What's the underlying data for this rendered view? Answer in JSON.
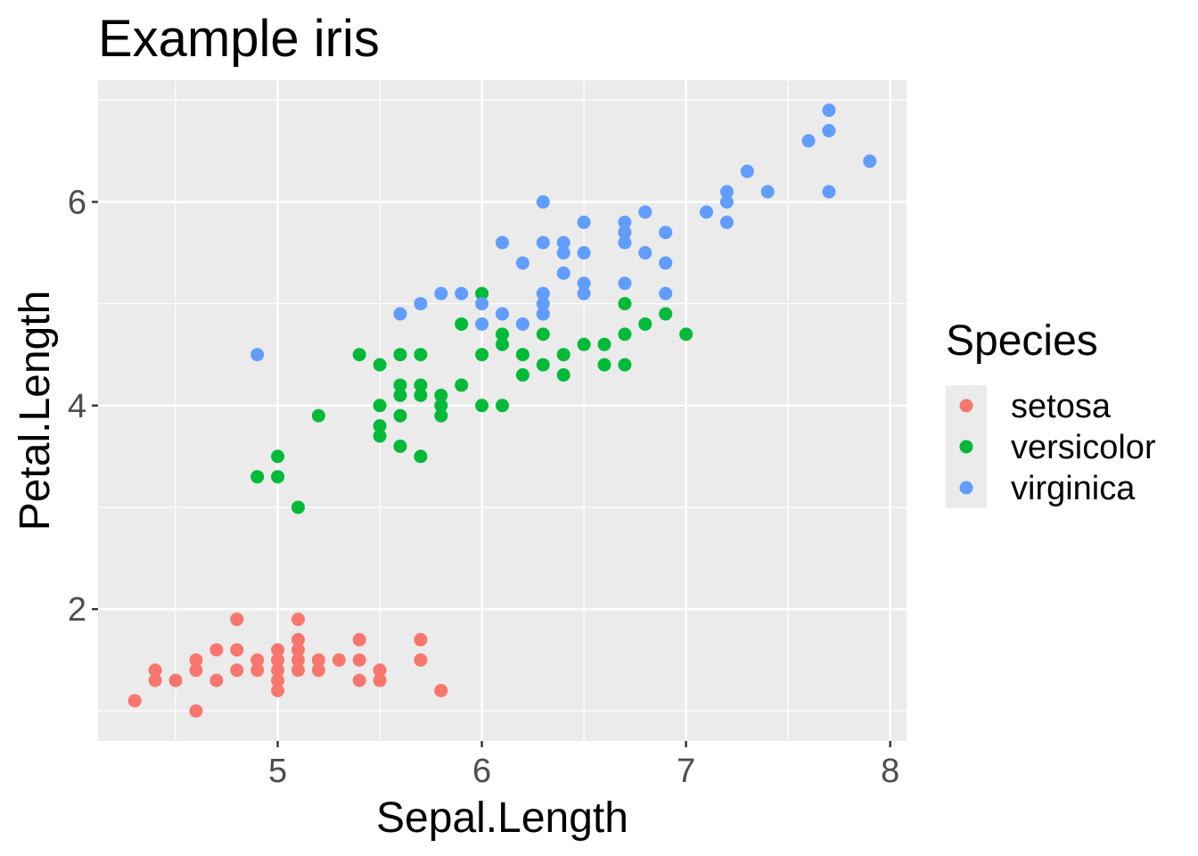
{
  "chart_data": {
    "type": "scatter",
    "title": "Example iris",
    "xlabel": "Sepal.Length",
    "ylabel": "Petal.Length",
    "xlim": [
      4.12,
      8.08
    ],
    "ylim": [
      0.705,
      7.195
    ],
    "x_ticks": [
      5,
      6,
      7,
      8
    ],
    "y_ticks": [
      2,
      4,
      6
    ],
    "x_tick_labels": [
      "5",
      "6",
      "7",
      "8"
    ],
    "y_tick_labels": [
      "2",
      "4",
      "6"
    ],
    "grid": true,
    "legend": {
      "title": "Species",
      "position": "right"
    },
    "colors": {
      "panel_background": "#EBEBEB",
      "grid": "#FFFFFF",
      "tick": "#333333",
      "tick_text": "#4D4D4D"
    },
    "series": [
      {
        "name": "setosa",
        "color": "#F8766D",
        "points": [
          [
            4.3,
            1.1
          ],
          [
            4.4,
            1.3
          ],
          [
            4.4,
            1.4
          ],
          [
            4.5,
            1.3
          ],
          [
            4.6,
            1.0
          ],
          [
            4.6,
            1.4
          ],
          [
            4.6,
            1.5
          ],
          [
            4.7,
            1.3
          ],
          [
            4.7,
            1.6
          ],
          [
            4.8,
            1.4
          ],
          [
            4.8,
            1.6
          ],
          [
            4.8,
            1.9
          ],
          [
            4.9,
            1.4
          ],
          [
            4.9,
            1.5
          ],
          [
            5.0,
            1.2
          ],
          [
            5.0,
            1.3
          ],
          [
            5.0,
            1.4
          ],
          [
            5.0,
            1.5
          ],
          [
            5.0,
            1.6
          ],
          [
            5.1,
            1.4
          ],
          [
            5.1,
            1.5
          ],
          [
            5.1,
            1.6
          ],
          [
            5.1,
            1.7
          ],
          [
            5.1,
            1.9
          ],
          [
            5.2,
            1.4
          ],
          [
            5.2,
            1.5
          ],
          [
            5.3,
            1.5
          ],
          [
            5.4,
            1.3
          ],
          [
            5.4,
            1.5
          ],
          [
            5.4,
            1.7
          ],
          [
            5.5,
            1.3
          ],
          [
            5.5,
            1.4
          ],
          [
            5.7,
            1.5
          ],
          [
            5.7,
            1.7
          ],
          [
            5.8,
            1.2
          ]
        ]
      },
      {
        "name": "versicolor",
        "color": "#00BA38",
        "points": [
          [
            4.9,
            3.3
          ],
          [
            5.0,
            3.3
          ],
          [
            5.0,
            3.5
          ],
          [
            5.1,
            3.0
          ],
          [
            5.2,
            3.9
          ],
          [
            5.4,
            4.5
          ],
          [
            5.5,
            3.7
          ],
          [
            5.5,
            3.8
          ],
          [
            5.5,
            4.0
          ],
          [
            5.5,
            4.4
          ],
          [
            5.6,
            3.6
          ],
          [
            5.6,
            3.9
          ],
          [
            5.6,
            4.1
          ],
          [
            5.6,
            4.2
          ],
          [
            5.6,
            4.5
          ],
          [
            5.7,
            3.5
          ],
          [
            5.7,
            4.1
          ],
          [
            5.7,
            4.2
          ],
          [
            5.7,
            4.5
          ],
          [
            5.8,
            3.9
          ],
          [
            5.8,
            4.0
          ],
          [
            5.8,
            4.1
          ],
          [
            5.9,
            4.2
          ],
          [
            5.9,
            4.8
          ],
          [
            6.0,
            4.0
          ],
          [
            6.0,
            4.5
          ],
          [
            6.0,
            5.1
          ],
          [
            6.1,
            4.0
          ],
          [
            6.1,
            4.6
          ],
          [
            6.1,
            4.7
          ],
          [
            6.2,
            4.3
          ],
          [
            6.2,
            4.5
          ],
          [
            6.3,
            4.4
          ],
          [
            6.3,
            4.7
          ],
          [
            6.3,
            4.9
          ],
          [
            6.4,
            4.3
          ],
          [
            6.4,
            4.5
          ],
          [
            6.5,
            4.6
          ],
          [
            6.6,
            4.4
          ],
          [
            6.6,
            4.6
          ],
          [
            6.7,
            4.4
          ],
          [
            6.7,
            4.7
          ],
          [
            6.7,
            5.0
          ],
          [
            6.8,
            4.8
          ],
          [
            6.9,
            4.9
          ],
          [
            7.0,
            4.7
          ]
        ]
      },
      {
        "name": "virginica",
        "color": "#619CFF",
        "points": [
          [
            4.9,
            4.5
          ],
          [
            5.6,
            4.9
          ],
          [
            5.7,
            5.0
          ],
          [
            5.8,
            5.1
          ],
          [
            5.9,
            5.1
          ],
          [
            6.0,
            4.8
          ],
          [
            6.0,
            5.0
          ],
          [
            6.1,
            4.9
          ],
          [
            6.1,
            5.6
          ],
          [
            6.2,
            4.8
          ],
          [
            6.2,
            5.4
          ],
          [
            6.3,
            4.9
          ],
          [
            6.3,
            5.0
          ],
          [
            6.3,
            5.1
          ],
          [
            6.3,
            5.6
          ],
          [
            6.3,
            6.0
          ],
          [
            6.4,
            5.3
          ],
          [
            6.4,
            5.5
          ],
          [
            6.4,
            5.6
          ],
          [
            6.5,
            5.1
          ],
          [
            6.5,
            5.2
          ],
          [
            6.5,
            5.5
          ],
          [
            6.5,
            5.8
          ],
          [
            6.7,
            5.2
          ],
          [
            6.7,
            5.6
          ],
          [
            6.7,
            5.7
          ],
          [
            6.7,
            5.8
          ],
          [
            6.8,
            5.5
          ],
          [
            6.8,
            5.9
          ],
          [
            6.9,
            5.1
          ],
          [
            6.9,
            5.4
          ],
          [
            6.9,
            5.7
          ],
          [
            7.1,
            5.9
          ],
          [
            7.2,
            5.8
          ],
          [
            7.2,
            6.0
          ],
          [
            7.2,
            6.1
          ],
          [
            7.3,
            6.3
          ],
          [
            7.4,
            6.1
          ],
          [
            7.6,
            6.6
          ],
          [
            7.7,
            6.1
          ],
          [
            7.7,
            6.7
          ],
          [
            7.7,
            6.9
          ],
          [
            7.9,
            6.4
          ]
        ]
      }
    ]
  }
}
